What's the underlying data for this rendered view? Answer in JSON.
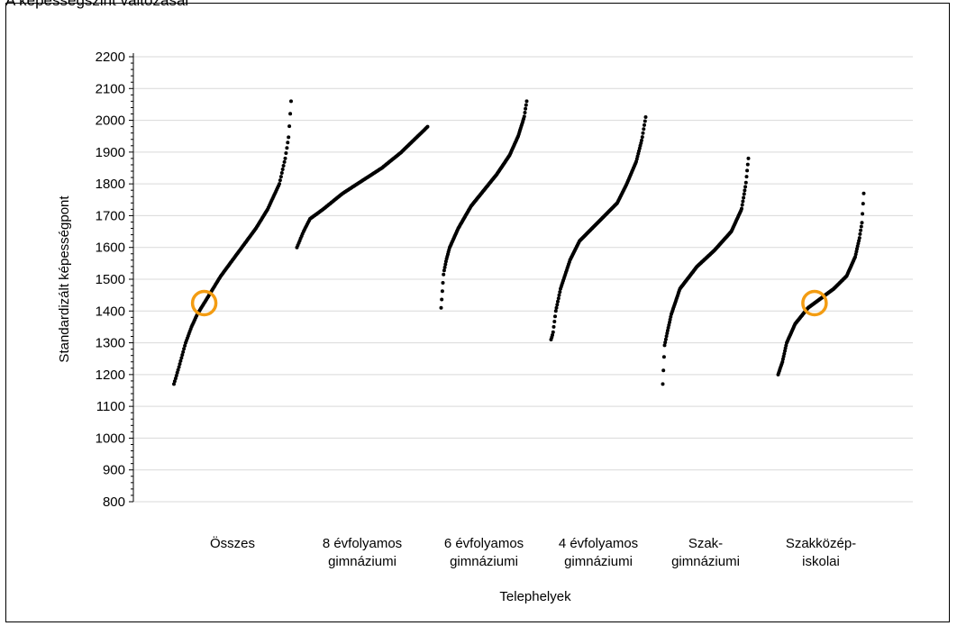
{
  "caption": "A képességszint változásai",
  "colors": {
    "points": "#000000",
    "grid": "#d9d9d9",
    "highlight": "#f39c12"
  },
  "chart_data": {
    "type": "scatter",
    "title": "",
    "ylabel": "Standardizált képességpont",
    "xlabel": "Telephelyek",
    "ylim": [
      800,
      2200
    ],
    "yticks": [
      800,
      900,
      1000,
      1100,
      1200,
      1300,
      1400,
      1500,
      1600,
      1700,
      1800,
      1900,
      2000,
      2100,
      2200
    ],
    "grid": true,
    "legend": "none",
    "categories": [
      [
        "Összes"
      ],
      [
        "8 évfolyamos",
        "gimnáziumi"
      ],
      [
        "6 évfolyamos",
        "gimnáziumi"
      ],
      [
        "4 évfolyamos",
        "gimnáziumi"
      ],
      [
        "Szak-",
        "gimnáziumi"
      ],
      [
        "Szakközép-",
        "iskolai"
      ]
    ],
    "series": [
      {
        "category_index": 0,
        "points": [
          [
            0,
            1170
          ],
          [
            0.02,
            1195
          ],
          [
            0.04,
            1220
          ],
          [
            0.07,
            1260
          ],
          [
            0.1,
            1300
          ],
          [
            0.15,
            1350
          ],
          [
            0.2,
            1390
          ],
          [
            0.3,
            1450
          ],
          [
            0.4,
            1510
          ],
          [
            0.5,
            1560
          ],
          [
            0.6,
            1610
          ],
          [
            0.7,
            1660
          ],
          [
            0.8,
            1720
          ],
          [
            0.9,
            1800
          ],
          [
            0.95,
            1880
          ],
          [
            0.98,
            1950
          ],
          [
            1,
            2060
          ]
        ]
      },
      {
        "category_index": 1,
        "points": [
          [
            0,
            1600
          ],
          [
            0.05,
            1650
          ],
          [
            0.1,
            1690
          ],
          [
            0.2,
            1720
          ],
          [
            0.35,
            1770
          ],
          [
            0.5,
            1810
          ],
          [
            0.65,
            1850
          ],
          [
            0.8,
            1900
          ],
          [
            0.9,
            1940
          ],
          [
            1,
            1980
          ]
        ]
      },
      {
        "category_index": 2,
        "points": [
          [
            0,
            1410
          ],
          [
            0.03,
            1520
          ],
          [
            0.06,
            1560
          ],
          [
            0.1,
            1600
          ],
          [
            0.2,
            1660
          ],
          [
            0.35,
            1730
          ],
          [
            0.5,
            1780
          ],
          [
            0.65,
            1830
          ],
          [
            0.8,
            1890
          ],
          [
            0.9,
            1950
          ],
          [
            0.97,
            2010
          ],
          [
            1,
            2060
          ]
        ]
      },
      {
        "category_index": 3,
        "points": [
          [
            0,
            1310
          ],
          [
            0.02,
            1330
          ],
          [
            0.05,
            1400
          ],
          [
            0.1,
            1470
          ],
          [
            0.2,
            1560
          ],
          [
            0.3,
            1620
          ],
          [
            0.5,
            1680
          ],
          [
            0.7,
            1740
          ],
          [
            0.8,
            1800
          ],
          [
            0.9,
            1870
          ],
          [
            0.96,
            1940
          ],
          [
            1,
            2010
          ]
        ]
      },
      {
        "category_index": 4,
        "points": [
          [
            0,
            1170
          ],
          [
            0.02,
            1290
          ],
          [
            0.05,
            1330
          ],
          [
            0.1,
            1390
          ],
          [
            0.2,
            1470
          ],
          [
            0.4,
            1540
          ],
          [
            0.6,
            1590
          ],
          [
            0.8,
            1650
          ],
          [
            0.92,
            1720
          ],
          [
            0.97,
            1800
          ],
          [
            1,
            1880
          ]
        ]
      },
      {
        "category_index": 5,
        "points": [
          [
            0,
            1200
          ],
          [
            0.05,
            1240
          ],
          [
            0.1,
            1300
          ],
          [
            0.2,
            1360
          ],
          [
            0.35,
            1410
          ],
          [
            0.5,
            1440
          ],
          [
            0.65,
            1470
          ],
          [
            0.8,
            1510
          ],
          [
            0.9,
            1570
          ],
          [
            0.95,
            1630
          ],
          [
            0.98,
            1680
          ],
          [
            1,
            1770
          ]
        ]
      }
    ],
    "highlights": [
      {
        "category_index": 0,
        "y": 1425
      },
      {
        "category_index": 5,
        "y": 1425
      }
    ]
  }
}
